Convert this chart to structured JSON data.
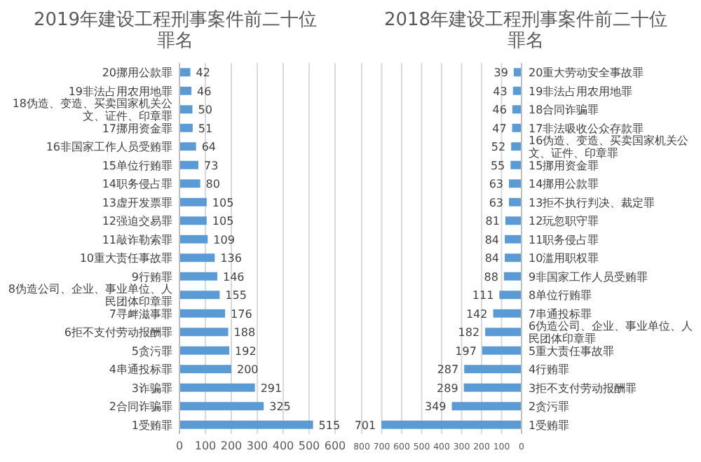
{
  "chart_data": [
    {
      "type": "bar",
      "orientation": "horizontal",
      "title": "2019年建设工程刑事案件前二十位罪名",
      "color": "#5b9bd5",
      "grid": "x",
      "data_labels": true,
      "xlim": [
        0,
        600
      ],
      "xticks": [
        0,
        100,
        200,
        300,
        400,
        500,
        600
      ],
      "categories": [
        "20挪用公款罪",
        "19非法占用农用地罪",
        "18伪造、变造、买卖国家机关公文、证件、印章罪",
        "17挪用资金罪",
        "16非国家工作人员受贿罪",
        "15单位行贿罪",
        "14职务侵占罪",
        "13虚开发票罪",
        "12强迫交易罪",
        "11敲诈勒索罪",
        "10重大责任事故罪",
        "9行贿罪",
        "8伪造公司、企业、事业单位、人民团体印章罪",
        "7寻衅滋事罪",
        "6拒不支付劳动报酬罪",
        "5贪污罪",
        "4串通投标罪",
        "3诈骗罪",
        "2合同诈骗罪",
        "1受贿罪"
      ],
      "values": [
        42,
        46,
        50,
        51,
        64,
        73,
        80,
        105,
        105,
        109,
        136,
        146,
        155,
        176,
        188,
        192,
        200,
        291,
        325,
        515
      ]
    },
    {
      "type": "bar",
      "orientation": "horizontal",
      "title": "2018年建设工程刑事案件前二十位罪名",
      "color": "#5b9bd5",
      "grid": "x",
      "data_labels": true,
      "xlim": [
        800,
        0
      ],
      "xticks": [
        800,
        700,
        600,
        500,
        400,
        300,
        200,
        100,
        0
      ],
      "categories": [
        "20重大劳动安全事故罪",
        "19非法占用农用地罪",
        "18合同诈骗罪",
        "17非法吸收公众存款罪",
        "16伪造、变造、买卖国家机关公文、证件、印章罪",
        "15挪用资金罪",
        "14挪用公款罪",
        "13拒不执行判决、裁定罪",
        "12玩忽职守罪",
        "11职务侵占罪",
        "10滥用职权罪",
        "9非国家工作人员受贿罪",
        "8单位行贿罪",
        "7串通投标罪",
        "6伪造公司、企业、事业单位、人民团体印章罪",
        "5重大责任事故罪",
        "4行贿罪",
        "3拒不支付劳动报酬罪",
        "2贪污罪",
        "1受贿罪"
      ],
      "values": [
        39,
        43,
        46,
        47,
        52,
        55,
        63,
        63,
        81,
        84,
        84,
        88,
        111,
        142,
        182,
        197,
        287,
        289,
        349,
        701
      ]
    }
  ]
}
